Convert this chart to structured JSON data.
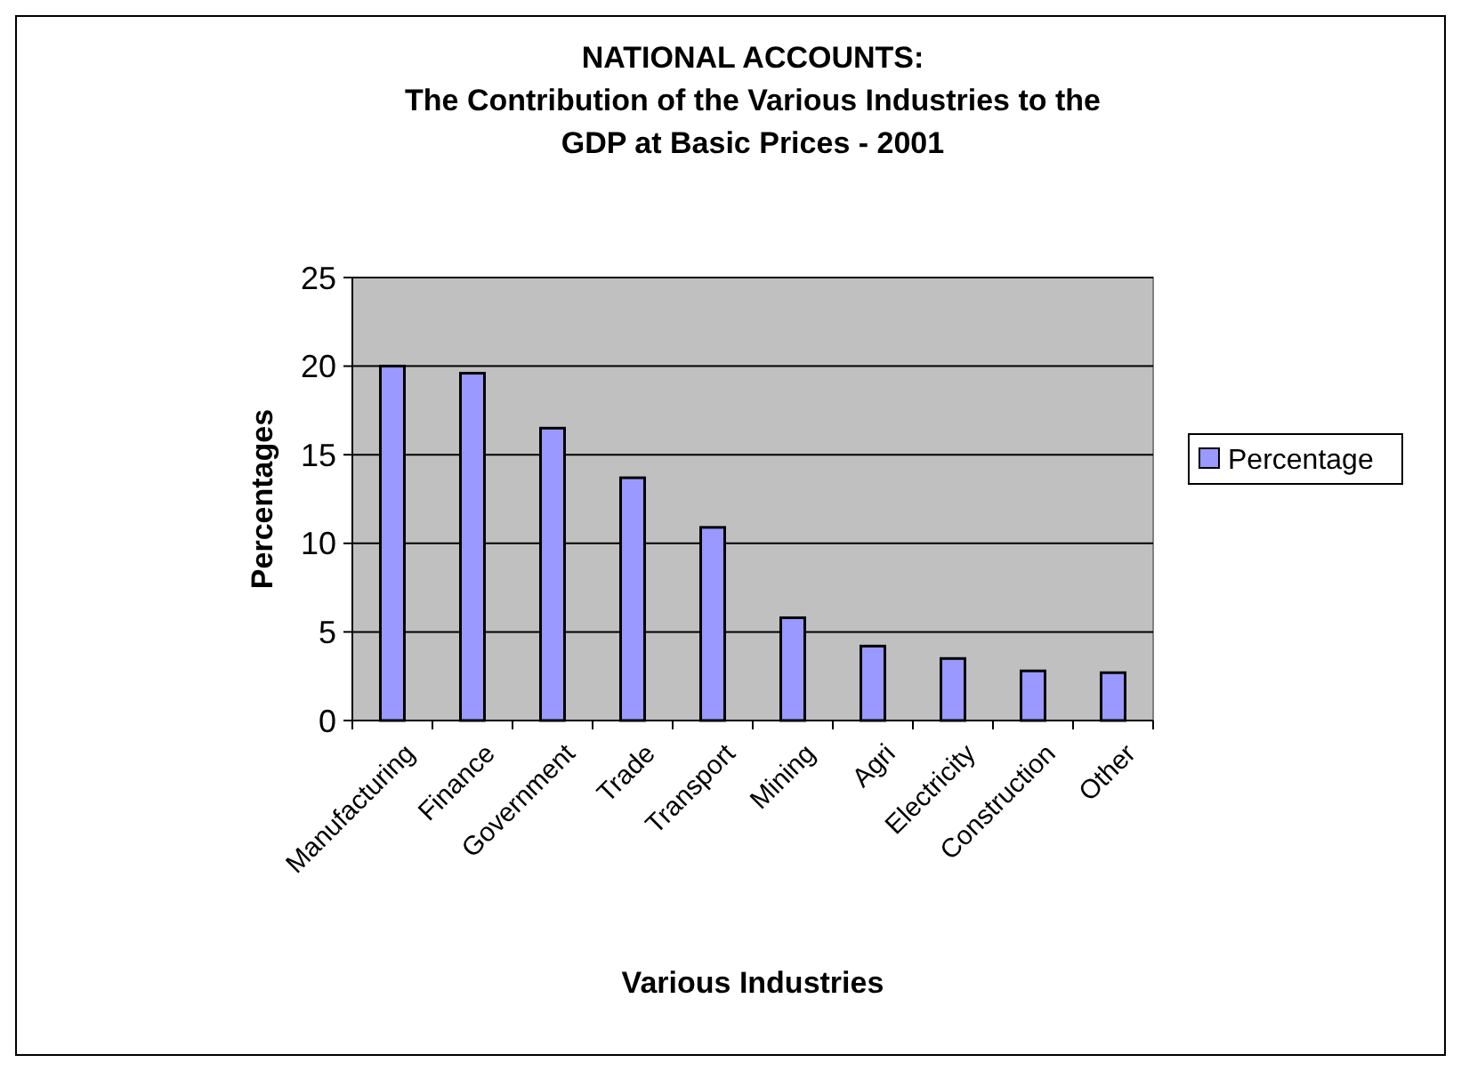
{
  "chart_data": {
    "type": "bar",
    "title": "NATIONAL ACCOUNTS:\nThe Contribution of the Various Industries to the\nGDP at Basic Prices - 2001",
    "xlabel": "Various Industries",
    "ylabel": "Percentages",
    "categories": [
      "Manufacturing",
      "Finance",
      "Government",
      "Trade",
      "Transport",
      "Mining",
      "Agri",
      "Electricity",
      "Construction",
      "Other"
    ],
    "series": [
      {
        "name": "Percentage",
        "color": "#9999ff",
        "values": [
          20,
          19.6,
          16.5,
          13.7,
          10.9,
          5.8,
          4.2,
          3.5,
          2.8,
          2.7
        ]
      }
    ],
    "ylim": [
      0,
      25
    ],
    "yticks": [
      0,
      5,
      10,
      15,
      20,
      25
    ],
    "grid": "y",
    "legend": "right"
  }
}
